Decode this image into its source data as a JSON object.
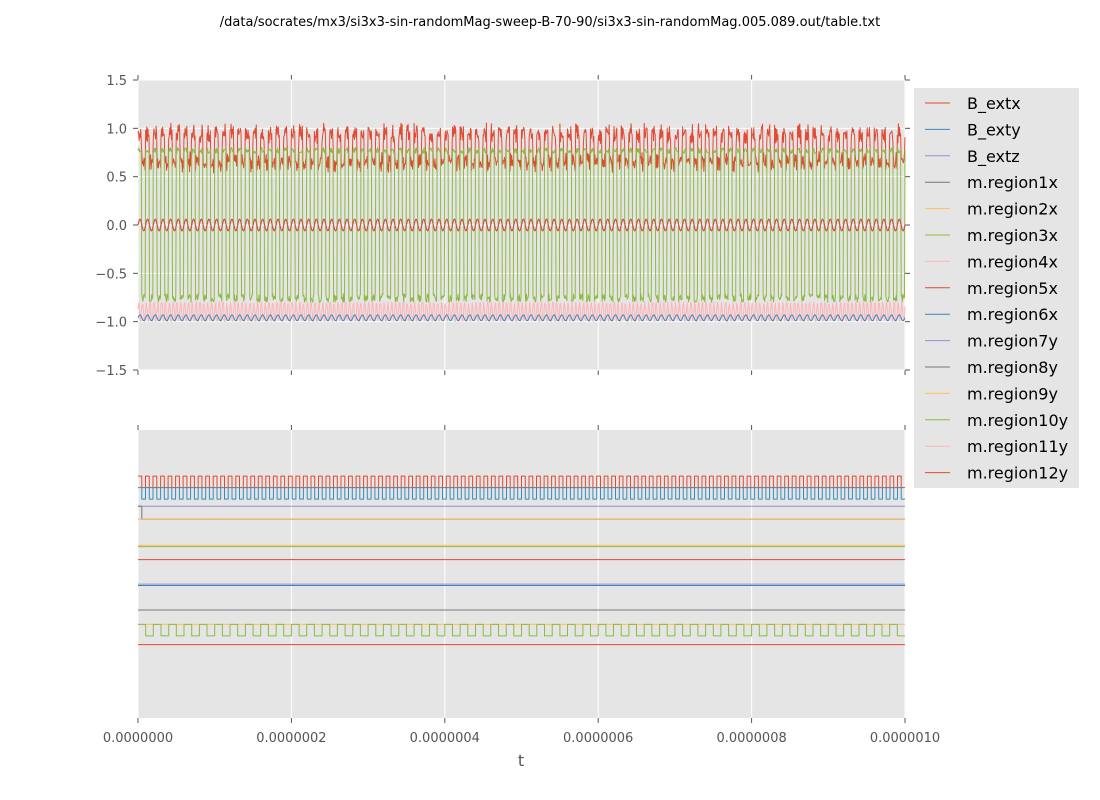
{
  "chart_data": {
    "type": "line",
    "title": "/data/socrates/mx3/si3x3-sin-randomMag-sweep-B-70-90/si3x3-sin-randomMag.005.089.out/table.txt",
    "xlabel": "t",
    "xlim": [
      0,
      1e-06
    ],
    "x_ticks": [
      "0.0000000",
      "0.0000002",
      "0.0000004",
      "0.0000006",
      "0.0000008",
      "0.0000010"
    ],
    "x_tick_values": [
      0,
      2e-07,
      4e-07,
      6e-07,
      8e-07,
      1e-06
    ],
    "grid": true,
    "legend": {
      "placement": "right",
      "entries": [
        "B_extx",
        "B_exty",
        "B_extz",
        "m.region1x",
        "m.region2x",
        "m.region3x",
        "m.region4x",
        "m.region5x",
        "m.region6x",
        "m.region7y",
        "m.region8y",
        "m.region9y",
        "m.region10y",
        "m.region11y",
        "m.region12y"
      ]
    },
    "colors": {
      "red": "#e24a33",
      "blue": "#348abd",
      "purple": "#988ed5",
      "gray": "#777777",
      "yellow": "#fbc15e",
      "green": "#8eba42",
      "pink": "#ffb5b8",
      "axes_bg": "#e5e5e5",
      "grid": "#ffffff"
    },
    "series_colors": [
      "#e24a33",
      "#348abd",
      "#988ed5",
      "#777777",
      "#fbc15e",
      "#8eba42",
      "#ffb5b8",
      "#e24a33",
      "#348abd",
      "#988ed5",
      "#777777",
      "#fbc15e",
      "#8eba42",
      "#ffb5b8",
      "#e24a33"
    ],
    "panels": [
      {
        "ylim": [
          -1.5,
          1.5
        ],
        "y_ticks": [
          "1.5",
          "1.0",
          "0.5",
          "0.0",
          "−0.5",
          "−1.0",
          "−1.5"
        ],
        "y_tick_values": [
          1.5,
          1.0,
          0.5,
          0.0,
          -0.5,
          -1.0,
          -1.5
        ],
        "cycles": 100,
        "traces": [
          {
            "color": "#e24a33",
            "kind": "switch",
            "high": 0.95,
            "low": 0.65,
            "values_range": [
              0.65,
              0.97
            ]
          },
          {
            "color": "#8eba42",
            "kind": "switch",
            "high": 0.8,
            "low": -0.8,
            "values_range": [
              -0.85,
              0.85
            ]
          },
          {
            "color": "#ffb5b8",
            "kind": "band",
            "values_range": [
              -1.0,
              -0.8
            ]
          },
          {
            "color": "#348abd",
            "kind": "sine",
            "center": 0.0,
            "amplitude": 0.06
          },
          {
            "color": "#e24a33",
            "kind": "sine",
            "center": 0.0,
            "amplitude": 0.06
          },
          {
            "color": "#348abd",
            "kind": "sine",
            "center": -0.96,
            "amplitude": 0.03
          }
        ]
      },
      {
        "ylim": [
          -1.0,
          1.0
        ],
        "y_ticks": [],
        "square_cycles": 102,
        "traces": [
          {
            "color": "#e24a33",
            "kind": "square",
            "high": 0.68,
            "low": 0.6
          },
          {
            "color": "#348abd",
            "kind": "square",
            "high": 0.6,
            "low": 0.52
          },
          {
            "color": "#988ed5",
            "kind": "flat",
            "value": 0.47
          },
          {
            "color": "#777777",
            "kind": "step",
            "start": 0.47,
            "value": 0.38,
            "at": 5e-09
          },
          {
            "color": "#fbc15e",
            "kind": "flat",
            "value": 0.38
          },
          {
            "color": "#fbc15e",
            "kind": "flat",
            "value": 0.2
          },
          {
            "color": "#8eba42",
            "kind": "flat",
            "value": 0.19
          },
          {
            "color": "#e24a33",
            "kind": "flat",
            "value": 0.1
          },
          {
            "color": "#988ed5",
            "kind": "flat",
            "value": -0.07
          },
          {
            "color": "#348abd",
            "kind": "flat",
            "value": -0.08
          },
          {
            "color": "#777777",
            "kind": "flat",
            "value": -0.25
          },
          {
            "color": "#fbc15e",
            "kind": "flat",
            "value": -0.35
          },
          {
            "color": "#8eba42",
            "kind": "square",
            "high": -0.35,
            "low": -0.43,
            "cycles": 50
          },
          {
            "color": "#e24a33",
            "kind": "flat",
            "value": -0.49
          }
        ]
      }
    ]
  }
}
